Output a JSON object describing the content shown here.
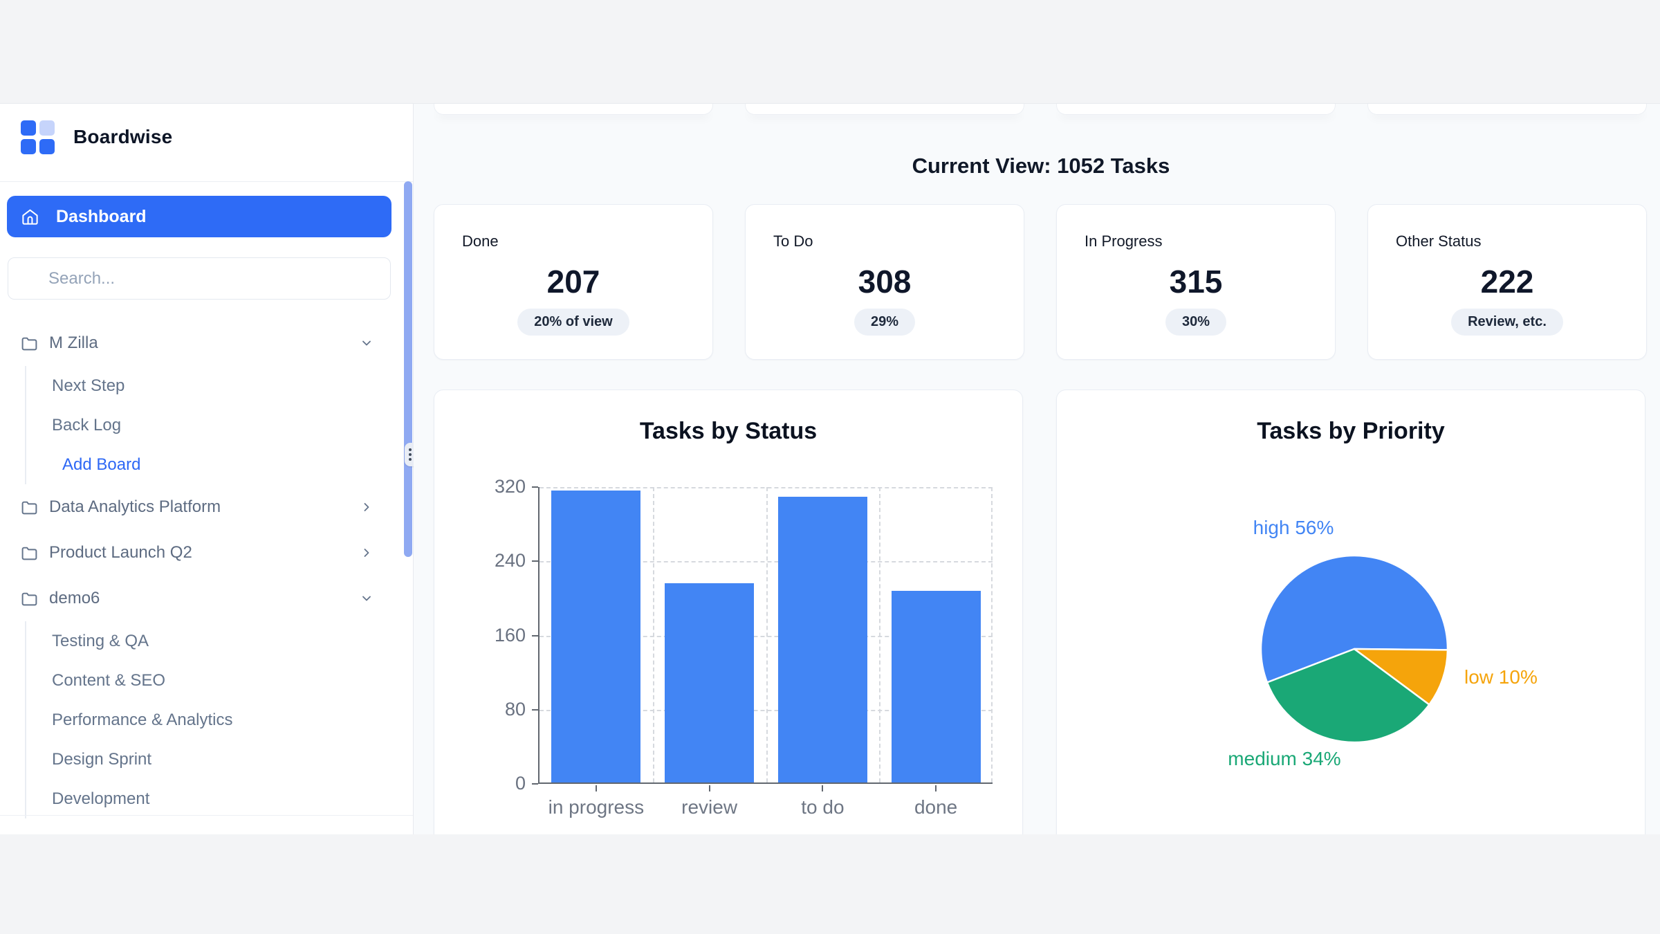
{
  "page": {
    "bg": "#f3f4f6",
    "surface": "#f8fafc",
    "accent_blue": "#2e6bf6",
    "scrollbar_color": "#8fa9f2"
  },
  "sidebar": {
    "brand": {
      "name": "Boardwise",
      "logo_colors": [
        "#2e6bf6",
        "#c6d4fb",
        "#2e6bf6",
        "#2e6bf6"
      ]
    },
    "nav": {
      "dashboard_label": "Dashboard"
    },
    "search": {
      "placeholder": "Search..."
    },
    "boards": [
      {
        "label": "M Zilla",
        "chevron": "down",
        "children": [
          {
            "label": "Next Step",
            "type": "board"
          },
          {
            "label": "Back Log",
            "type": "board"
          },
          {
            "label": "Add Board",
            "type": "action"
          }
        ]
      },
      {
        "label": "Data Analytics Platform",
        "chevron": "right",
        "children": []
      },
      {
        "label": "Product Launch Q2",
        "chevron": "right",
        "children": []
      },
      {
        "label": "demo6",
        "chevron": "down",
        "children": [
          {
            "label": "Testing & QA",
            "type": "board"
          },
          {
            "label": "Content & SEO",
            "type": "board"
          },
          {
            "label": "Performance & Analytics",
            "type": "board"
          },
          {
            "label": "Design Sprint",
            "type": "board"
          },
          {
            "label": "Development",
            "type": "board"
          }
        ]
      }
    ]
  },
  "main": {
    "heading": "Current View: 1052 Tasks",
    "stats": [
      {
        "label": "Done",
        "value": "207",
        "badge": "20% of view"
      },
      {
        "label": "To Do",
        "value": "308",
        "badge": "29%"
      },
      {
        "label": "In Progress",
        "value": "315",
        "badge": "30%"
      },
      {
        "label": "Other Status",
        "value": "222",
        "badge": "Review, etc."
      }
    ]
  },
  "chart_data": [
    {
      "type": "bar",
      "title": "Tasks by Status",
      "categories": [
        "in progress",
        "review",
        "to do",
        "done"
      ],
      "values": [
        315,
        215,
        308,
        207
      ],
      "xlabel": "",
      "ylabel": "",
      "ylim": [
        0,
        320
      ],
      "yticks": [
        0,
        80,
        160,
        240,
        320
      ],
      "bar_color": "#4285f4",
      "grid": "dashed",
      "legend": "none"
    },
    {
      "type": "pie",
      "title": "Tasks by Priority",
      "start_angle_deg": 249,
      "slices": [
        {
          "label": "high",
          "pct": 56,
          "color": "#4285f4"
        },
        {
          "label": "low",
          "pct": 10,
          "color": "#f5a40b"
        },
        {
          "label": "medium",
          "pct": 34,
          "color": "#1aa876"
        }
      ],
      "legend": "outside-labels"
    }
  ]
}
